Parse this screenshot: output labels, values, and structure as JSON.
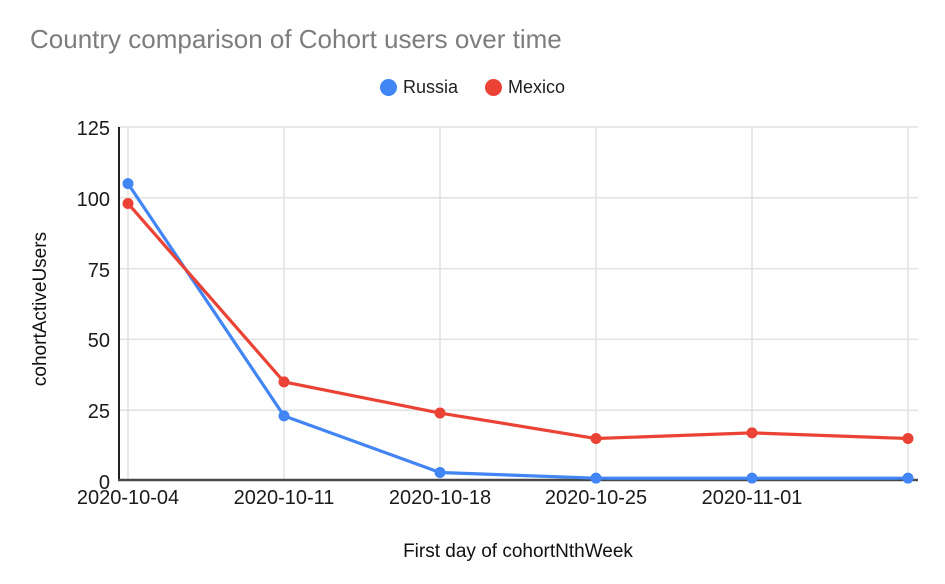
{
  "chart_data": {
    "type": "line",
    "title": "Country comparison of Cohort users over time",
    "xlabel": "First day of cohortNthWeek",
    "ylabel": "cohortActiveUsers",
    "x_tick_labels": [
      "2020-10-04",
      "2020-10-11",
      "2020-10-18",
      "2020-10-25",
      "2020-11-01",
      ""
    ],
    "y_ticks": [
      0,
      25,
      50,
      75,
      100,
      125
    ],
    "ylim": [
      0,
      125
    ],
    "grid": true,
    "legend_position": "top-center",
    "marker": "circle",
    "series": [
      {
        "name": "Russia",
        "color": "#4285F4",
        "values": [
          105,
          23,
          3,
          1,
          1,
          1
        ]
      },
      {
        "name": "Mexico",
        "color": "#EA4335",
        "values": [
          98,
          35,
          24,
          15,
          17,
          15
        ]
      }
    ]
  },
  "colors": {
    "background": "#ffffff",
    "title_text": "#7d7d7d",
    "tick_text": "#1a1a1a",
    "axis_text": "#111111",
    "legend_text": "#212121",
    "grid_line": "#e2e2e2",
    "y_axis_line": "#212121",
    "x_axis_line": "#484848"
  }
}
